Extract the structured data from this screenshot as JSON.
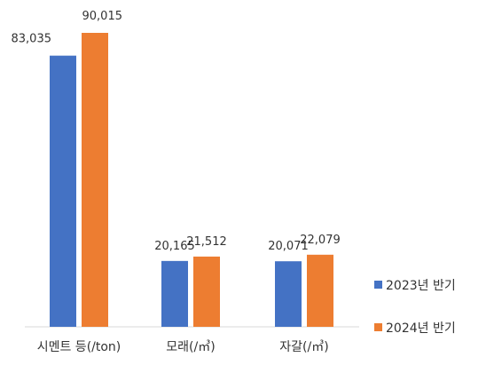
{
  "chart_data": {
    "type": "bar",
    "title": "",
    "xlabel": "",
    "ylabel": "",
    "categories": [
      "시멘트 등(/ton)",
      "모래(/㎥)",
      "자갈(/㎥)"
    ],
    "series": [
      {
        "name": "2023년 반기",
        "values": [
          83035,
          20165,
          20071
        ],
        "labels": [
          "83,035",
          "20,165",
          "20,071"
        ],
        "color": "#4472C4"
      },
      {
        "name": "2024년 반기",
        "values": [
          90015,
          21512,
          22079
        ],
        "labels": [
          "90,015",
          "21,512",
          "22,079"
        ],
        "color": "#ED7D31"
      }
    ],
    "ylim": [
      0,
      100000
    ],
    "grid": false,
    "legend_position": "right"
  }
}
